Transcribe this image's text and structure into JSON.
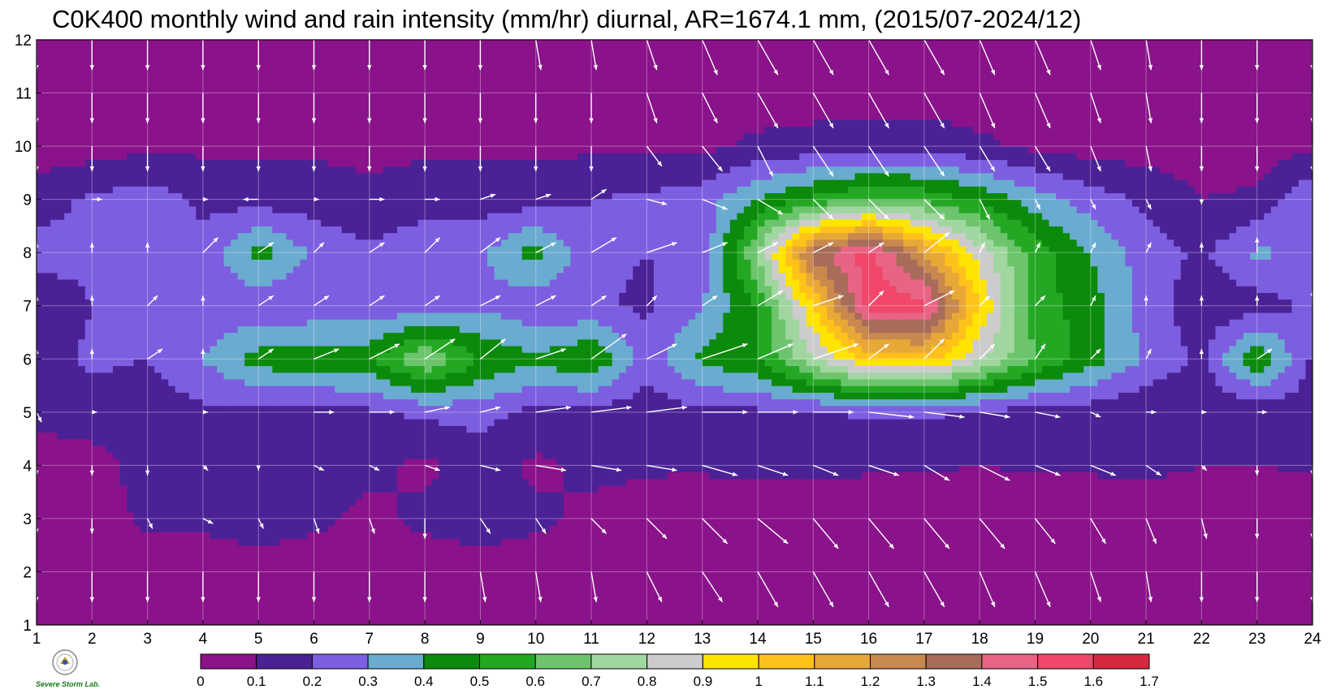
{
  "title": "C0K400 monthly wind and rain intensity (mm/hr) diurnal, AR=1674.1 mm, (2015/07-2024/12)",
  "logo_text": "Severe Storm Lab.",
  "chart_data": {
    "type": "heatmap",
    "title": "C0K400 monthly wind and rain intensity (mm/hr) diurnal, AR=1674.1 mm, (2015/07-2024/12)",
    "xlabel": "",
    "ylabel": "",
    "xlim": [
      1,
      24
    ],
    "ylim": [
      1,
      12
    ],
    "x_ticks": [
      1,
      2,
      3,
      4,
      5,
      6,
      7,
      8,
      9,
      10,
      11,
      12,
      13,
      14,
      15,
      16,
      17,
      18,
      19,
      20,
      21,
      22,
      23,
      24
    ],
    "y_ticks": [
      1,
      2,
      3,
      4,
      5,
      6,
      7,
      8,
      9,
      10,
      11,
      12
    ],
    "grid": true,
    "colorbar": {
      "placement": "bottom",
      "levels": [
        "0",
        "0.1",
        "0.2",
        "0.3",
        "0.4",
        "0.5",
        "0.6",
        "0.7",
        "0.8",
        "0.9",
        "1",
        "1.1",
        "1.2",
        "1.3",
        "1.4",
        "1.5",
        "1.6",
        "1.7"
      ],
      "colors": [
        "#8a128a",
        "#4a2296",
        "#7d5ee0",
        "#6aabd0",
        "#0b8a0b",
        "#24a824",
        "#6cc46c",
        "#a0d6a0",
        "#cccccc",
        "#ffe400",
        "#ffc21a",
        "#e8a838",
        "#c8884e",
        "#a86c5a",
        "#e86484",
        "#f0476a",
        "#d82840"
      ]
    },
    "rain_intensity": [
      [
        0.05,
        0.05,
        0.05,
        0.05,
        0.05,
        0.05,
        0.05,
        0.05,
        0.05,
        0.05,
        0.05,
        0.05,
        0.05,
        0.05,
        0.05,
        0.05,
        0.05,
        0.05,
        0.05,
        0.05,
        0.05,
        0.05,
        0.05,
        0.05
      ],
      [
        0.05,
        0.05,
        0.05,
        0.05,
        0.05,
        0.05,
        0.05,
        0.05,
        0.05,
        0.05,
        0.05,
        0.05,
        0.05,
        0.05,
        0.05,
        0.05,
        0.05,
        0.05,
        0.05,
        0.05,
        0.05,
        0.05,
        0.05,
        0.05
      ],
      [
        0.05,
        0.05,
        0.12,
        0.12,
        0.15,
        0.12,
        0.08,
        0.12,
        0.15,
        0.12,
        0.08,
        0.06,
        0.05,
        0.05,
        0.05,
        0.05,
        0.05,
        0.05,
        0.05,
        0.05,
        0.05,
        0.05,
        0.05,
        0.05
      ],
      [
        0.06,
        0.06,
        0.14,
        0.15,
        0.2,
        0.14,
        0.12,
        0.08,
        0.14,
        0.08,
        0.12,
        0.11,
        0.11,
        0.12,
        0.12,
        0.11,
        0.11,
        0.1,
        0.11,
        0.11,
        0.12,
        0.1,
        0.1,
        0.11
      ],
      [
        0.12,
        0.15,
        0.14,
        0.18,
        0.15,
        0.15,
        0.18,
        0.22,
        0.24,
        0.17,
        0.16,
        0.14,
        0.18,
        0.18,
        0.18,
        0.22,
        0.22,
        0.18,
        0.15,
        0.14,
        0.12,
        0.1,
        0.12,
        0.15
      ],
      [
        0.15,
        0.22,
        0.2,
        0.3,
        0.45,
        0.48,
        0.48,
        0.7,
        0.5,
        0.42,
        0.5,
        0.25,
        0.42,
        0.5,
        0.78,
        1.02,
        1.05,
        0.82,
        0.6,
        0.45,
        0.28,
        0.18,
        0.5,
        0.18
      ],
      [
        0.12,
        0.2,
        0.2,
        0.22,
        0.22,
        0.22,
        0.22,
        0.25,
        0.28,
        0.22,
        0.22,
        0.18,
        0.3,
        0.5,
        1.0,
        1.55,
        1.55,
        1.0,
        0.55,
        0.45,
        0.25,
        0.14,
        0.15,
        0.22
      ],
      [
        0.25,
        0.22,
        0.28,
        0.22,
        0.45,
        0.28,
        0.22,
        0.28,
        0.28,
        0.45,
        0.22,
        0.2,
        0.22,
        0.72,
        1.35,
        1.55,
        1.2,
        0.85,
        0.55,
        0.4,
        0.25,
        0.18,
        0.32,
        0.28
      ],
      [
        0.15,
        0.22,
        0.25,
        0.18,
        0.15,
        0.15,
        0.12,
        0.15,
        0.15,
        0.15,
        0.2,
        0.22,
        0.25,
        0.4,
        0.52,
        0.62,
        0.58,
        0.48,
        0.35,
        0.25,
        0.18,
        0.1,
        0.12,
        0.3
      ],
      [
        0.05,
        0.05,
        0.08,
        0.08,
        0.08,
        0.08,
        0.08,
        0.08,
        0.08,
        0.08,
        0.08,
        0.08,
        0.08,
        0.12,
        0.14,
        0.15,
        0.16,
        0.12,
        0.08,
        0.05,
        0.05,
        0.05,
        0.05,
        0.08
      ],
      [
        0.05,
        0.05,
        0.05,
        0.05,
        0.05,
        0.05,
        0.05,
        0.05,
        0.05,
        0.05,
        0.05,
        0.05,
        0.05,
        0.05,
        0.05,
        0.05,
        0.05,
        0.05,
        0.05,
        0.05,
        0.05,
        0.05,
        0.05,
        0.05
      ],
      [
        0.05,
        0.05,
        0.05,
        0.05,
        0.05,
        0.05,
        0.05,
        0.05,
        0.05,
        0.05,
        0.05,
        0.05,
        0.05,
        0.05,
        0.05,
        0.05,
        0.05,
        0.05,
        0.05,
        0.05,
        0.05,
        0.05,
        0.05,
        0.05
      ]
    ],
    "wind_u": [
      [
        0,
        0,
        0,
        0,
        0,
        0,
        0,
        0,
        0.1,
        0.1,
        0.1,
        0.3,
        0.4,
        0.4,
        0.4,
        0.4,
        0.4,
        0.3,
        0.3,
        0.2,
        0.1,
        0,
        0,
        0
      ],
      [
        0,
        0,
        0,
        0,
        0,
        0,
        0,
        0,
        0.1,
        0.1,
        0.1,
        0.3,
        0.4,
        0.4,
        0.4,
        0.4,
        0.4,
        0.3,
        0.3,
        0.2,
        0.1,
        0,
        0,
        0
      ],
      [
        0,
        0,
        0.1,
        0.2,
        0.1,
        0.1,
        0.1,
        0,
        0.2,
        0.2,
        0.3,
        0.4,
        0.5,
        0.6,
        0.5,
        0.5,
        0.5,
        0.5,
        0.4,
        0.3,
        0.2,
        0.1,
        0,
        0
      ],
      [
        0,
        0,
        0,
        0.1,
        0,
        0.2,
        0.2,
        0.3,
        0.4,
        0.6,
        0.6,
        0.6,
        0.7,
        0.6,
        0.5,
        0.6,
        0.5,
        0.6,
        0.5,
        0.5,
        0.3,
        0.1,
        0,
        0
      ],
      [
        0.1,
        0.1,
        0,
        0.1,
        0,
        0.4,
        0.5,
        0.5,
        0.4,
        0.7,
        0.8,
        0.8,
        0.9,
        0.8,
        0.8,
        0.9,
        0.8,
        0.6,
        0.5,
        0.2,
        0.2,
        0.1,
        0.2,
        0.3
      ],
      [
        0,
        0,
        0.3,
        0,
        0.3,
        0.5,
        0.6,
        0.6,
        0.5,
        0.6,
        0.7,
        0.6,
        0.9,
        0.7,
        0.9,
        0.4,
        0.4,
        0.3,
        0.2,
        0.2,
        0.1,
        0,
        0.3,
        0.2
      ],
      [
        0,
        0,
        0.2,
        0,
        0.3,
        0.3,
        0.3,
        0.3,
        0.4,
        0.4,
        0.3,
        0.2,
        0.3,
        0.5,
        0.6,
        0.3,
        0.6,
        0.2,
        0.2,
        0.1,
        0,
        0,
        0,
        0
      ],
      [
        0,
        0,
        0,
        0.3,
        0.3,
        0.2,
        0.3,
        0.3,
        0.4,
        0.4,
        0.5,
        0.6,
        0.5,
        0.4,
        0.4,
        0.3,
        0.5,
        0.1,
        0.1,
        0.1,
        0.1,
        0,
        0,
        0.1
      ],
      [
        0,
        0.2,
        0,
        0.1,
        -0.3,
        0.1,
        0.3,
        0.3,
        0.3,
        0.3,
        0.3,
        0.4,
        0.5,
        0.5,
        0.4,
        0.4,
        0.4,
        0.2,
        0.1,
        0.1,
        0.1,
        0,
        0,
        0
      ],
      [
        0,
        0,
        0,
        0,
        0,
        0,
        0,
        0,
        0,
        0,
        0,
        0.3,
        0.4,
        0.3,
        0.4,
        0.4,
        0.4,
        0.3,
        0.3,
        0.2,
        0.1,
        0,
        0,
        0
      ],
      [
        0,
        0,
        0,
        0,
        0,
        0,
        0,
        0,
        0,
        0,
        0,
        0.2,
        0.3,
        0.4,
        0.4,
        0.4,
        0.4,
        0.3,
        0.3,
        0.2,
        0.1,
        0,
        0,
        0
      ],
      [
        0,
        0,
        0,
        0,
        0,
        0,
        0,
        0,
        0,
        0.1,
        0.1,
        0.2,
        0.3,
        0.4,
        0.4,
        0.4,
        0.4,
        0.3,
        0.3,
        0.2,
        0.1,
        0,
        0,
        0
      ]
    ],
    "wind_v": [
      [
        -0.6,
        -0.6,
        -0.6,
        -0.6,
        -0.6,
        -0.6,
        -0.6,
        -0.6,
        -0.6,
        -0.6,
        -0.6,
        -0.6,
        -0.6,
        -0.6,
        -0.6,
        -0.6,
        -0.6,
        -0.6,
        -0.6,
        -0.6,
        -0.6,
        -0.6,
        -0.6,
        -0.6
      ],
      [
        -0.6,
        -0.6,
        -0.6,
        -0.6,
        -0.6,
        -0.6,
        -0.6,
        -0.6,
        -0.6,
        -0.6,
        -0.6,
        -0.6,
        -0.6,
        -0.7,
        -0.7,
        -0.7,
        -0.7,
        -0.7,
        -0.7,
        -0.6,
        -0.6,
        -0.6,
        -0.6,
        -0.6
      ],
      [
        -0.3,
        -0.3,
        -0.2,
        -0.1,
        -0.2,
        -0.3,
        -0.3,
        -0.4,
        -0.3,
        -0.3,
        -0.3,
        -0.4,
        -0.5,
        -0.5,
        -0.6,
        -0.6,
        -0.6,
        -0.6,
        -0.5,
        -0.5,
        -0.5,
        -0.4,
        -0.4,
        -0.4
      ],
      [
        -0.2,
        -0.2,
        -0.2,
        -0.1,
        -0.1,
        -0.1,
        -0.1,
        -0.1,
        -0.1,
        -0.1,
        -0.1,
        -0.1,
        -0.2,
        -0.2,
        -0.2,
        -0.2,
        -0.3,
        -0.3,
        -0.2,
        -0.2,
        -0.2,
        -0.1,
        -0.2,
        -0.2
      ],
      [
        -0.2,
        0,
        0,
        0,
        0,
        0,
        0,
        0.1,
        0.1,
        0.1,
        0.1,
        0.1,
        0,
        0,
        0,
        -0.1,
        -0.1,
        -0.1,
        -0.1,
        -0.1,
        0,
        0,
        0,
        0.1
      ],
      [
        0.2,
        0.2,
        0.2,
        0.2,
        0.2,
        0.2,
        0.3,
        0.4,
        0.4,
        0.2,
        0.5,
        0.3,
        0.3,
        0.3,
        0.3,
        0.3,
        0.4,
        0.3,
        0.3,
        0.2,
        0.2,
        0.2,
        0.2,
        0.3
      ],
      [
        0.2,
        0.2,
        0.2,
        0.2,
        0.2,
        0.2,
        0.2,
        0.2,
        0.2,
        0.2,
        0.2,
        0.2,
        0.2,
        0.3,
        0.2,
        0.3,
        0.3,
        0.2,
        0.2,
        0.2,
        0.2,
        0.2,
        0.2,
        0.3
      ],
      [
        0.2,
        0.2,
        0.2,
        0.3,
        0.2,
        0.2,
        0.2,
        0.3,
        0.3,
        0.2,
        0.3,
        0.2,
        0.2,
        0.2,
        0.2,
        0.2,
        0.4,
        0.2,
        0.2,
        0.2,
        0.2,
        0.2,
        0.3,
        0.2
      ],
      [
        0,
        0,
        0,
        0,
        0,
        0,
        0,
        0,
        0.1,
        0.1,
        0.2,
        -0.1,
        -0.2,
        -0.3,
        -0.4,
        -0.4,
        -0.4,
        -0.4,
        -0.2,
        -0.2,
        -0.2,
        -0.1,
        0,
        0
      ],
      [
        -0.5,
        -0.5,
        -0.5,
        -0.5,
        -0.5,
        -0.5,
        -0.5,
        -0.5,
        -0.5,
        -0.5,
        -0.5,
        -0.4,
        -0.5,
        -0.6,
        -0.6,
        -0.6,
        -0.6,
        -0.5,
        -0.5,
        -0.5,
        -0.5,
        -0.5,
        -0.5,
        -0.5
      ],
      [
        -0.6,
        -0.6,
        -0.6,
        -0.6,
        -0.6,
        -0.6,
        -0.6,
        -0.6,
        -0.6,
        -0.6,
        -0.6,
        -0.6,
        -0.6,
        -0.7,
        -0.7,
        -0.7,
        -0.7,
        -0.7,
        -0.7,
        -0.6,
        -0.6,
        -0.6,
        -0.6,
        -0.6
      ],
      [
        -0.6,
        -0.6,
        -0.6,
        -0.6,
        -0.6,
        -0.6,
        -0.6,
        -0.6,
        -0.6,
        -0.6,
        -0.6,
        -0.6,
        -0.7,
        -0.7,
        -0.7,
        -0.7,
        -0.7,
        -0.7,
        -0.7,
        -0.6,
        -0.6,
        -0.6,
        -0.6,
        -0.6
      ]
    ]
  }
}
